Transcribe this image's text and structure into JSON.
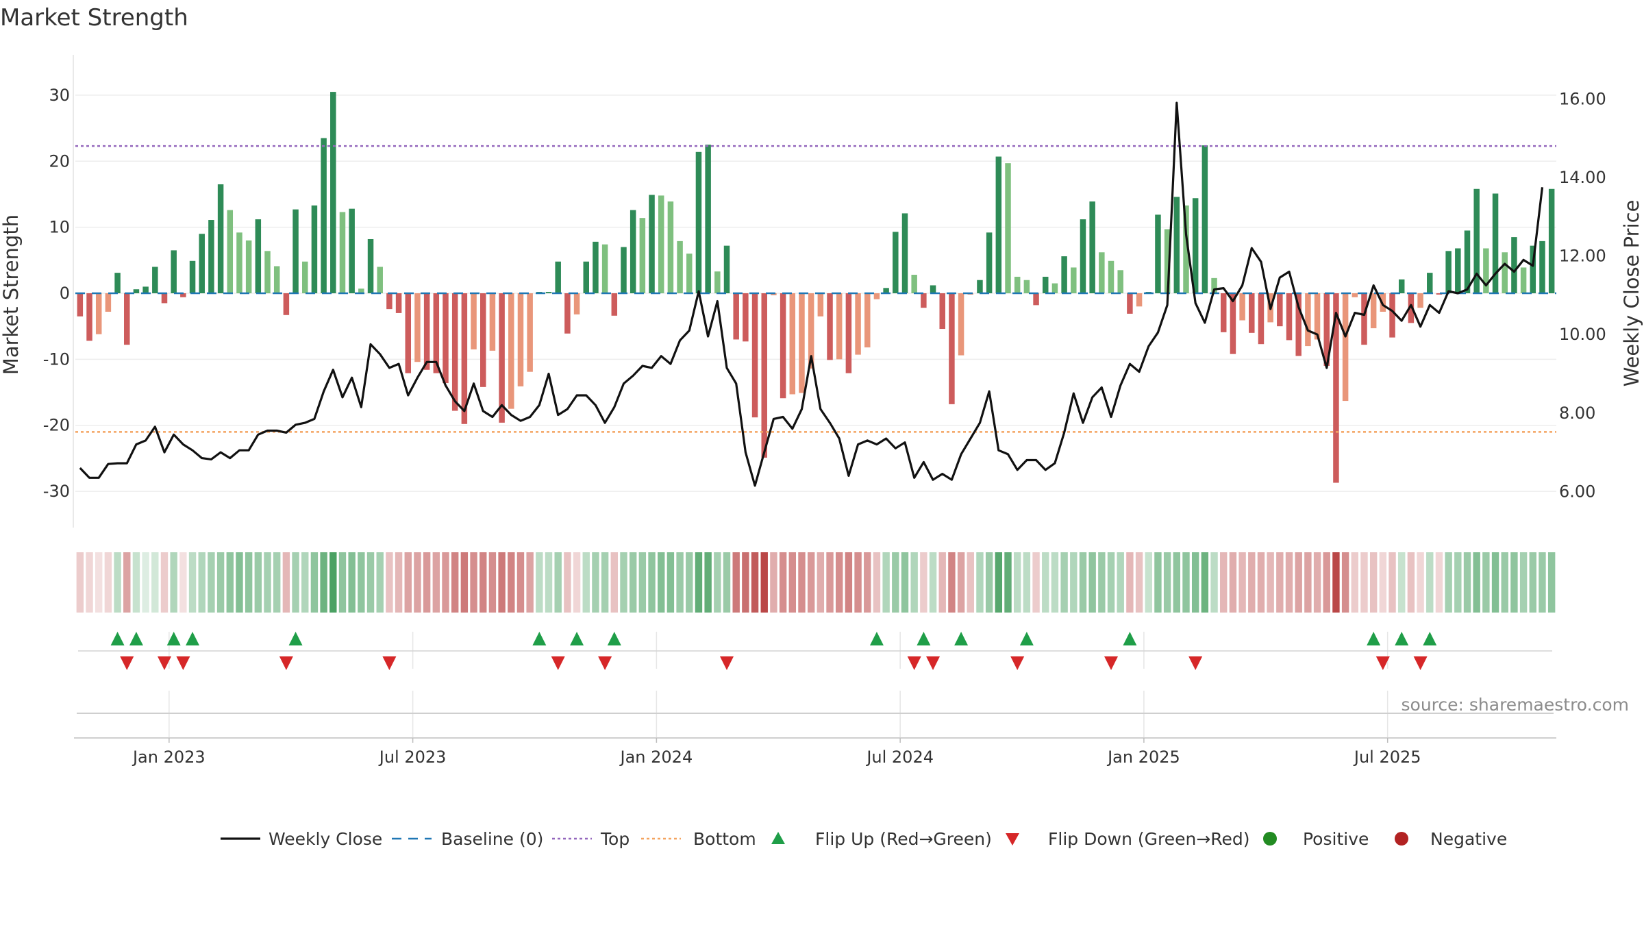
{
  "title": "Market Strength",
  "source": "source: sharemaestro.com",
  "colors": {
    "pos_dark": "#2e8b57",
    "pos_light": "#7fc07f",
    "neg_dark": "#cd5c5c",
    "neg_light": "#e9967a",
    "line": "#111111",
    "baseline": "#1f77b4",
    "top": "#9467bd",
    "bottom": "#f4a460",
    "flip_up": "#1f9e48",
    "flip_down": "#d62728",
    "positive": "#228b22",
    "negative": "#b22222"
  },
  "chart_data": {
    "type": "bar",
    "x_axis": {
      "tick_labels": [
        "Jan 2023",
        "Jul 2023",
        "Jan 2024",
        "Jul 2024",
        "Jan 2025",
        "Jul 2025"
      ],
      "tick_weeks": [
        10,
        36,
        62,
        88,
        114,
        140
      ]
    },
    "left_axis": {
      "label": "Market Strength",
      "ylim": [
        -33,
        33
      ],
      "ticks": [
        30,
        20,
        10,
        0,
        -10,
        -20,
        -30
      ]
    },
    "right_axis": {
      "label": "Weekly Close Price",
      "ylim": [
        5.5,
        16.6
      ],
      "ticks": [
        "16.00",
        "14.00",
        "12.00",
        "10.00",
        "8.00",
        "6.00"
      ]
    },
    "top_level": 22.3,
    "bottom_level": -21,
    "strength": [
      -3.5,
      -7.2,
      -6.2,
      -2.8,
      3.1,
      -7.8,
      0.6,
      1.0,
      4.0,
      -1.5,
      6.5,
      -0.6,
      4.9,
      9.0,
      11.1,
      16.5,
      12.6,
      9.2,
      8.0,
      11.2,
      6.4,
      4.1,
      -3.3,
      12.7,
      4.8,
      13.3,
      23.5,
      30.5,
      12.3,
      12.8,
      0.7,
      8.2,
      4.0,
      -2.4,
      -3.0,
      -12.1,
      -10.4,
      -11.6,
      -12.1,
      -13.6,
      -17.8,
      -19.8,
      -8.5,
      -14.2,
      -8.7,
      -19.6,
      -17.5,
      -14.1,
      -11.9,
      0.2,
      0.2,
      4.8,
      -6.1,
      -3.2,
      4.8,
      7.8,
      7.4,
      -3.4,
      7.0,
      12.6,
      11.4,
      14.9,
      14.8,
      13.9,
      7.9,
      6.0,
      21.4,
      22.5,
      3.3,
      7.2,
      -7.0,
      -7.3,
      -18.8,
      -24.9,
      -0.3,
      -15.9,
      -15.3,
      -15.1,
      -11.4,
      -3.5,
      -10.1,
      -10.0,
      -12.1,
      -9.3,
      -8.2,
      -0.9,
      0.8,
      9.3,
      12.1,
      2.8,
      -2.2,
      1.2,
      -5.4,
      -16.8,
      -9.4,
      -0.2,
      2.0,
      9.2,
      20.7,
      19.7,
      2.5,
      2.0,
      -1.8,
      2.5,
      1.5,
      5.6,
      3.9,
      11.2,
      13.9,
      6.2,
      4.9,
      3.5,
      -3.1,
      -2.0,
      0.2,
      11.9,
      9.7,
      14.6,
      13.3,
      14.4,
      22.4,
      2.3,
      -5.9,
      -9.2,
      -4.1,
      -6.0,
      -7.7,
      -4.4,
      -5.0,
      -7.1,
      -9.5,
      -8.0,
      -7.0,
      -11.0,
      -28.7,
      -16.3,
      -0.6,
      -7.8,
      -5.3,
      -2.8,
      -6.7,
      2.1,
      -4.5,
      -2.2,
      3.1,
      -0.2,
      6.4,
      6.8,
      9.5,
      15.8,
      6.8,
      15.1,
      6.2,
      8.5,
      3.9,
      7.2,
      7.9,
      15.8
    ],
    "close": [
      6.6,
      6.35,
      6.35,
      6.7,
      6.72,
      6.72,
      7.2,
      7.3,
      7.65,
      7.0,
      7.45,
      7.2,
      7.05,
      6.85,
      6.82,
      7.0,
      6.85,
      7.05,
      7.05,
      7.45,
      7.55,
      7.55,
      7.5,
      7.7,
      7.75,
      7.85,
      8.55,
      9.1,
      8.4,
      8.9,
      8.15,
      9.75,
      9.5,
      9.15,
      9.25,
      8.45,
      8.9,
      9.3,
      9.3,
      8.7,
      8.3,
      8.05,
      8.75,
      8.05,
      7.9,
      8.2,
      7.95,
      7.8,
      7.9,
      8.2,
      9.0,
      7.95,
      8.1,
      8.45,
      8.45,
      8.2,
      7.75,
      8.15,
      8.75,
      8.95,
      9.2,
      9.15,
      9.45,
      9.25,
      9.85,
      10.1,
      11.1,
      9.95,
      10.85,
      9.15,
      8.75,
      7.0,
      6.15,
      7.0,
      7.85,
      7.9,
      7.6,
      8.1,
      9.45,
      8.1,
      7.75,
      7.35,
      6.4,
      7.2,
      7.3,
      7.2,
      7.35,
      7.1,
      7.25,
      6.35,
      6.75,
      6.3,
      6.45,
      6.3,
      6.95,
      7.35,
      7.75,
      8.55,
      7.05,
      6.95,
      6.55,
      6.8,
      6.8,
      6.55,
      6.72,
      7.5,
      8.5,
      7.75,
      8.4,
      8.65,
      7.9,
      8.7,
      9.25,
      9.05,
      9.7,
      10.05,
      10.75,
      15.9,
      12.55,
      10.8,
      10.3,
      11.15,
      11.18,
      10.85,
      11.25,
      12.2,
      11.85,
      10.65,
      11.45,
      11.6,
      10.7,
      10.1,
      10.0,
      9.15,
      10.55,
      9.95,
      10.55,
      10.5,
      11.25,
      10.75,
      10.6,
      10.35,
      10.75,
      10.2,
      10.75,
      10.55,
      11.1,
      11.05,
      11.15,
      11.55,
      11.25,
      11.55,
      11.8,
      11.6,
      11.9,
      11.75,
      13.75
    ],
    "strip_levels": [
      0.25,
      0.2,
      0.15,
      0.2,
      0.3,
      0.45,
      0.25,
      0.15,
      0.2,
      0.25,
      0.35,
      0.15,
      0.3,
      0.35,
      0.4,
      0.45,
      0.5,
      0.55,
      0.5,
      0.45,
      0.4,
      0.4,
      0.35,
      0.4,
      0.35,
      0.5,
      0.65,
      0.8,
      0.5,
      0.55,
      0.5,
      0.45,
      0.4,
      0.3,
      0.35,
      0.45,
      0.45,
      0.5,
      0.45,
      0.5,
      0.6,
      0.65,
      0.55,
      0.6,
      0.55,
      0.65,
      0.6,
      0.55,
      0.45,
      0.3,
      0.3,
      0.4,
      0.3,
      0.2,
      0.3,
      0.4,
      0.4,
      0.3,
      0.4,
      0.45,
      0.45,
      0.5,
      0.55,
      0.55,
      0.45,
      0.45,
      0.7,
      0.7,
      0.4,
      0.45,
      0.65,
      0.7,
      0.8,
      0.9,
      0.4,
      0.55,
      0.55,
      0.55,
      0.5,
      0.4,
      0.5,
      0.55,
      0.6,
      0.55,
      0.5,
      0.3,
      0.35,
      0.45,
      0.5,
      0.35,
      0.25,
      0.3,
      0.35,
      0.6,
      0.45,
      0.3,
      0.35,
      0.45,
      0.75,
      0.7,
      0.3,
      0.3,
      0.25,
      0.3,
      0.3,
      0.4,
      0.35,
      0.45,
      0.5,
      0.45,
      0.4,
      0.35,
      0.35,
      0.3,
      0.25,
      0.5,
      0.45,
      0.5,
      0.5,
      0.55,
      0.65,
      0.3,
      0.35,
      0.4,
      0.35,
      0.4,
      0.4,
      0.35,
      0.4,
      0.4,
      0.45,
      0.45,
      0.4,
      0.5,
      0.9,
      0.55,
      0.25,
      0.25,
      0.3,
      0.2,
      0.3,
      0.25,
      0.3,
      0.2,
      0.3,
      0.2,
      0.4,
      0.4,
      0.45,
      0.55,
      0.45,
      0.55,
      0.45,
      0.5,
      0.4,
      0.45,
      0.45,
      0.5
    ],
    "flip_up_weeks": [
      4,
      6,
      10,
      12,
      23,
      49,
      53,
      57,
      85,
      90,
      94,
      101,
      112,
      138,
      141,
      144
    ],
    "flip_down_weeks": [
      5,
      9,
      11,
      22,
      33,
      51,
      56,
      69,
      89,
      91,
      100,
      110,
      119,
      139,
      143
    ],
    "legend": [
      {
        "key": "line",
        "label": "Weekly Close"
      },
      {
        "key": "baseline",
        "label": "Baseline (0)"
      },
      {
        "key": "top",
        "label": "Top"
      },
      {
        "key": "bottom",
        "label": "Bottom"
      },
      {
        "key": "flip_up",
        "label": "Flip Up (Red→Green)"
      },
      {
        "key": "flip_down",
        "label": "Flip Down (Green→Red)"
      },
      {
        "key": "positive",
        "label": "Positive"
      },
      {
        "key": "negative",
        "label": "Negative"
      }
    ]
  }
}
